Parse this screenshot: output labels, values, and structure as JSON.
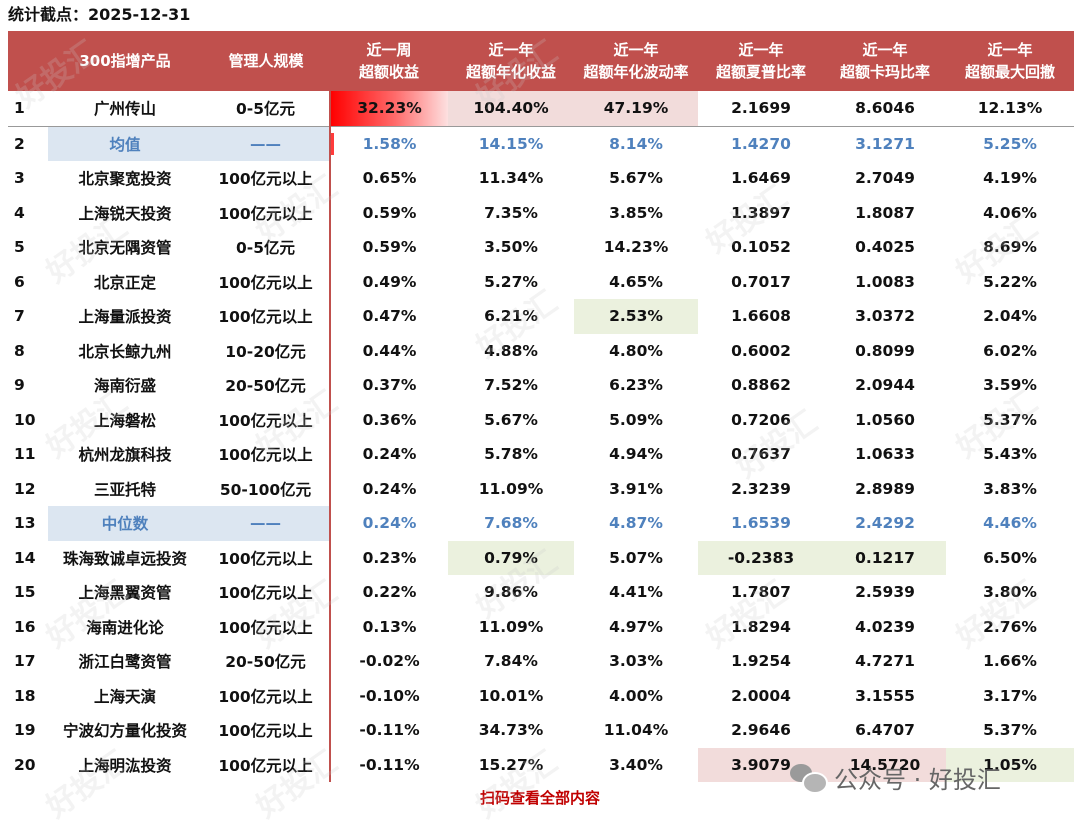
{
  "stat_date": "统计截点：2025-12-31",
  "headers": {
    "idx": "",
    "name": "300指增产品",
    "scale": "管理人规模",
    "week_excess": [
      "近一周",
      "超额收益"
    ],
    "year_excess_ret": [
      "近一年",
      "超额年化收益"
    ],
    "year_excess_vol": [
      "近一年",
      "超额年化波动率"
    ],
    "year_sharpe": [
      "近一年",
      "超额夏普比率"
    ],
    "year_calmar": [
      "近一年",
      "超额卡玛比率"
    ],
    "year_mdd": [
      "近一年",
      "超额最大回撤"
    ]
  },
  "rows": [
    {
      "idx": "1",
      "name": "广州传山",
      "scale": "0-5亿元",
      "week": "32.23%",
      "ret": "104.40%",
      "vol": "47.19%",
      "sharpe": "2.1699",
      "calmar": "8.6046",
      "mdd": "12.13%",
      "type": "first"
    },
    {
      "idx": "2",
      "name": "均值",
      "scale": "——",
      "week": "1.58%",
      "ret": "14.15%",
      "vol": "8.14%",
      "sharpe": "1.4270",
      "calmar": "3.1271",
      "mdd": "5.25%",
      "type": "stat"
    },
    {
      "idx": "3",
      "name": "北京聚宽投资",
      "scale": "100亿元以上",
      "week": "0.65%",
      "ret": "11.34%",
      "vol": "5.67%",
      "sharpe": "1.6469",
      "calmar": "2.7049",
      "mdd": "4.19%"
    },
    {
      "idx": "4",
      "name": "上海锐天投资",
      "scale": "100亿元以上",
      "week": "0.59%",
      "ret": "7.35%",
      "vol": "3.85%",
      "sharpe": "1.3897",
      "calmar": "1.8087",
      "mdd": "4.06%"
    },
    {
      "idx": "5",
      "name": "北京无隅资管",
      "scale": "0-5亿元",
      "week": "0.59%",
      "ret": "3.50%",
      "vol": "14.23%",
      "sharpe": "0.1052",
      "calmar": "0.4025",
      "mdd": "8.69%"
    },
    {
      "idx": "6",
      "name": "北京正定",
      "scale": "100亿元以上",
      "week": "0.49%",
      "ret": "5.27%",
      "vol": "4.65%",
      "sharpe": "0.7017",
      "calmar": "1.0083",
      "mdd": "5.22%"
    },
    {
      "idx": "7",
      "name": "上海量派投资",
      "scale": "100亿元以上",
      "week": "0.47%",
      "ret": "6.21%",
      "vol": "2.53%",
      "sharpe": "1.6608",
      "calmar": "3.0372",
      "mdd": "2.04%"
    },
    {
      "idx": "8",
      "name": "北京长鲸九州",
      "scale": "10-20亿元",
      "week": "0.44%",
      "ret": "4.88%",
      "vol": "4.80%",
      "sharpe": "0.6002",
      "calmar": "0.8099",
      "mdd": "6.02%"
    },
    {
      "idx": "9",
      "name": "海南衍盛",
      "scale": "20-50亿元",
      "week": "0.37%",
      "ret": "7.52%",
      "vol": "6.23%",
      "sharpe": "0.8862",
      "calmar": "2.0944",
      "mdd": "3.59%"
    },
    {
      "idx": "10",
      "name": "上海磐松",
      "scale": "100亿元以上",
      "week": "0.36%",
      "ret": "5.67%",
      "vol": "5.09%",
      "sharpe": "0.7206",
      "calmar": "1.0560",
      "mdd": "5.37%"
    },
    {
      "idx": "11",
      "name": "杭州龙旗科技",
      "scale": "100亿元以上",
      "week": "0.24%",
      "ret": "5.78%",
      "vol": "4.94%",
      "sharpe": "0.7637",
      "calmar": "1.0633",
      "mdd": "5.43%"
    },
    {
      "idx": "12",
      "name": "三亚托特",
      "scale": "50-100亿元",
      "week": "0.24%",
      "ret": "11.09%",
      "vol": "3.91%",
      "sharpe": "2.3239",
      "calmar": "2.8989",
      "mdd": "3.83%"
    },
    {
      "idx": "13",
      "name": "中位数",
      "scale": "——",
      "week": "0.24%",
      "ret": "7.68%",
      "vol": "4.87%",
      "sharpe": "1.6539",
      "calmar": "2.4292",
      "mdd": "4.46%",
      "type": "stat"
    },
    {
      "idx": "14",
      "name": "珠海致诚卓远投资",
      "scale": "100亿元以上",
      "week": "0.23%",
      "ret": "0.79%",
      "vol": "5.07%",
      "sharpe": "-0.2383",
      "calmar": "0.1217",
      "mdd": "6.50%"
    },
    {
      "idx": "15",
      "name": "上海黑翼资管",
      "scale": "100亿元以上",
      "week": "0.22%",
      "ret": "9.86%",
      "vol": "4.41%",
      "sharpe": "1.7807",
      "calmar": "2.5939",
      "mdd": "3.80%"
    },
    {
      "idx": "16",
      "name": "海南进化论",
      "scale": "100亿元以上",
      "week": "0.13%",
      "ret": "11.09%",
      "vol": "4.97%",
      "sharpe": "1.8294",
      "calmar": "4.0239",
      "mdd": "2.76%"
    },
    {
      "idx": "17",
      "name": "浙江白鹭资管",
      "scale": "20-50亿元",
      "week": "-0.02%",
      "ret": "7.84%",
      "vol": "3.03%",
      "sharpe": "1.9254",
      "calmar": "4.7271",
      "mdd": "1.66%"
    },
    {
      "idx": "18",
      "name": "上海天演",
      "scale": "100亿元以上",
      "week": "-0.10%",
      "ret": "10.01%",
      "vol": "4.00%",
      "sharpe": "2.0004",
      "calmar": "3.1555",
      "mdd": "3.17%"
    },
    {
      "idx": "19",
      "name": "宁波幻方量化投资",
      "scale": "100亿元以上",
      "week": "-0.11%",
      "ret": "34.73%",
      "vol": "11.04%",
      "sharpe": "2.9646",
      "calmar": "6.4707",
      "mdd": "5.37%"
    },
    {
      "idx": "20",
      "name": "上海明汯投资",
      "scale": "100亿元以上",
      "week": "-0.11%",
      "ret": "15.27%",
      "vol": "3.40%",
      "sharpe": "3.9079",
      "calmar": "14.5720",
      "mdd": "1.05%"
    }
  ],
  "highlights": {
    "red_strong": [
      [
        0,
        "week"
      ]
    ],
    "pink": [
      [
        0,
        "ret"
      ],
      [
        0,
        "vol"
      ],
      [
        19,
        "sharpe"
      ],
      [
        19,
        "calmar"
      ]
    ],
    "green": [
      [
        6,
        "vol"
      ],
      [
        13,
        "ret"
      ],
      [
        13,
        "sharpe"
      ],
      [
        13,
        "calmar"
      ],
      [
        19,
        "mdd"
      ]
    ],
    "week_bar_rows": [
      1
    ]
  },
  "footer_link": "扫码查看全部内容",
  "wechat_label": "公众号 · 好投汇",
  "watermark_text": "好投汇",
  "colors": {
    "header_bg": "#c0504d",
    "stat_text": "#4f81bd",
    "stat_bg": "#dce6f1",
    "pink": "#f2dcdb",
    "green": "#ebf1de",
    "footer_red": "#c00000"
  }
}
